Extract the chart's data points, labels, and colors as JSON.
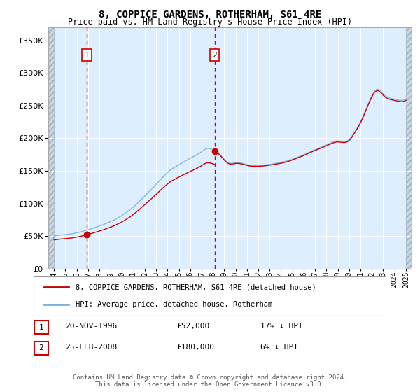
{
  "title": "8, COPPICE GARDENS, ROTHERHAM, S61 4RE",
  "subtitle": "Price paid vs. HM Land Registry's House Price Index (HPI)",
  "hpi_label": "HPI: Average price, detached house, Rotherham",
  "property_label": "8, COPPICE GARDENS, ROTHERHAM, S61 4RE (detached house)",
  "transaction1": {
    "date": "20-NOV-1996",
    "price": 52000,
    "note": "17% ↓ HPI"
  },
  "transaction2": {
    "date": "25-FEB-2008",
    "price": 180000,
    "note": "6% ↓ HPI"
  },
  "t1_year": 1996.89,
  "t2_year": 2008.15,
  "ylim": [
    0,
    370000
  ],
  "xlim_start": 1993.5,
  "xlim_end": 2025.5,
  "background_color": "#ffffff",
  "plot_bg_color": "#ddeeff",
  "grid_color": "#ffffff",
  "hpi_line_color": "#7ab3e0",
  "property_line_color": "#cc0000",
  "vline_color": "#cc0000",
  "marker_color": "#cc0000",
  "footer": "Contains HM Land Registry data © Crown copyright and database right 2024.\nThis data is licensed under the Open Government Licence v3.0."
}
